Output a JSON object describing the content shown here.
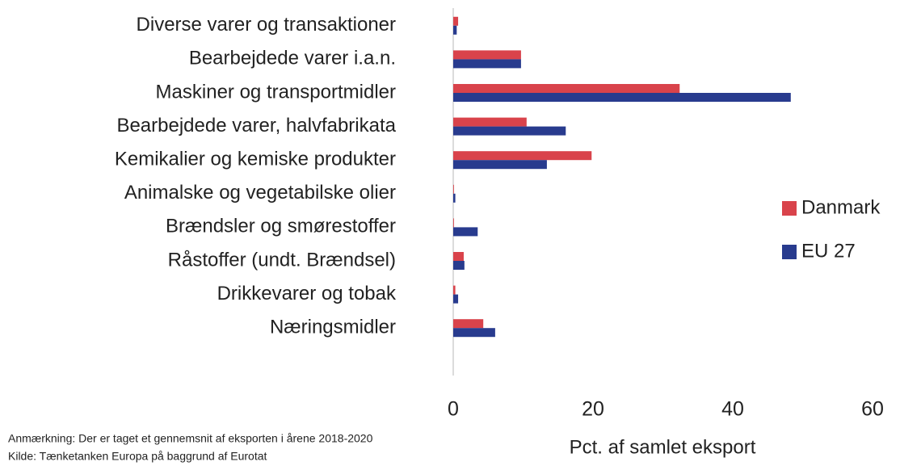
{
  "chart_data": {
    "type": "hbar",
    "categories": [
      "Diverse varer og transaktioner",
      "Bearbejdede varer i.a.n.",
      "Maskiner og transportmidler",
      "Bearbejdede varer, halvfabrikata",
      "Kemikalier og kemiske produkter",
      "Animalske og vegetabilske olier",
      "Brændsler og smørestoffer",
      "Råstoffer (undt. Brændsel)",
      "Drikkevarer og tobak",
      "Næringsmidler"
    ],
    "series": [
      {
        "name": "Danmark",
        "color": "#d9434b",
        "values": [
          0.7,
          9.7,
          32.4,
          10.5,
          19.8,
          0.1,
          0.1,
          1.5,
          0.3,
          4.3
        ]
      },
      {
        "name": "EU 27",
        "color": "#283b8e",
        "values": [
          0.5,
          9.7,
          48.3,
          16.1,
          13.4,
          0.3,
          3.5,
          1.6,
          0.7,
          6.0
        ]
      }
    ],
    "xlim": [
      0,
      60
    ],
    "xticks": [
      0,
      20,
      40,
      60
    ],
    "xlabel": "Pct. af samlet eksport",
    "legend": "right",
    "notes": [
      "Anmærkning: Der er taget et gennemsnit af eksporten i årene 2018-2020",
      "Kilde: Tænketanken Europa på baggrund af Eurotat"
    ]
  }
}
